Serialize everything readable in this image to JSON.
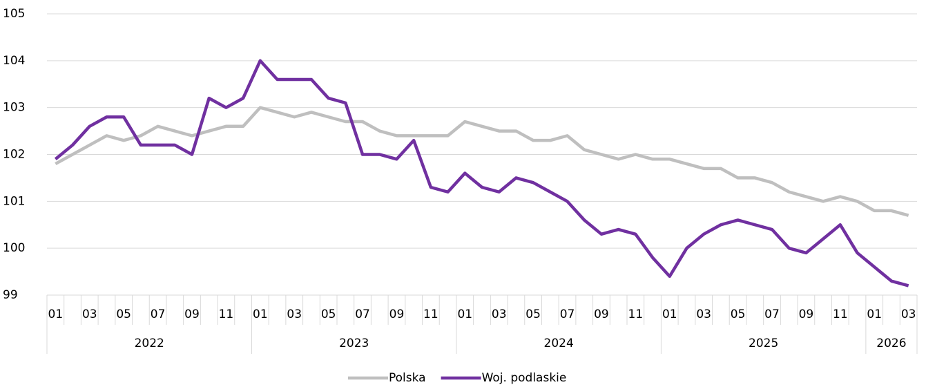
{
  "chart_data": {
    "type": "line",
    "categories": [
      "01",
      null,
      "03",
      null,
      "05",
      null,
      "07",
      null,
      "09",
      null,
      "11",
      null,
      "01",
      null,
      "03",
      null,
      "05",
      null,
      "07",
      null,
      "09",
      null,
      "11",
      null,
      "01",
      null,
      "03",
      null,
      "05",
      null,
      "07",
      null,
      "09",
      null,
      "11",
      null,
      "01",
      null,
      "03",
      null,
      "05",
      null,
      "07",
      null,
      "09",
      null,
      "11",
      null,
      "01",
      null,
      "03"
    ],
    "category_years": [
      "2022",
      "2022",
      "2022",
      "2022",
      "2022",
      "2022",
      "2022",
      "2022",
      "2022",
      "2022",
      "2022",
      "2022",
      "2023",
      "2023",
      "2023",
      "2023",
      "2023",
      "2023",
      "2023",
      "2023",
      "2023",
      "2023",
      "2023",
      "2023",
      "2024",
      "2024",
      "2024",
      "2024",
      "2024",
      "2024",
      "2024",
      "2024",
      "2024",
      "2024",
      "2024",
      "2024",
      "2025",
      "2025",
      "2025",
      "2025",
      "2025",
      "2025",
      "2025",
      "2025",
      "2025",
      "2025",
      "2025",
      "2025",
      "2026",
      "2026",
      "2026"
    ],
    "series": [
      {
        "name": "Polska",
        "color": "#bfbfbf",
        "values": [
          101.8,
          102.0,
          102.2,
          102.4,
          102.3,
          102.4,
          102.6,
          102.5,
          102.4,
          102.5,
          102.6,
          102.6,
          103.0,
          102.9,
          102.8,
          102.9,
          102.8,
          102.7,
          102.7,
          102.5,
          102.4,
          102.4,
          102.4,
          102.4,
          102.7,
          102.6,
          102.5,
          102.5,
          102.3,
          102.3,
          102.4,
          102.1,
          102.0,
          101.9,
          102.0,
          101.9,
          101.9,
          101.8,
          101.7,
          101.7,
          101.5,
          101.5,
          101.4,
          101.2,
          101.1,
          101.0,
          101.1,
          101.0,
          100.8,
          100.8,
          100.7
        ]
      },
      {
        "name": "Woj. podlaskie",
        "color": "#7030a0",
        "values": [
          101.9,
          102.2,
          102.6,
          102.8,
          102.8,
          102.2,
          102.2,
          102.2,
          102.0,
          103.2,
          103.0,
          103.2,
          104.0,
          103.6,
          103.6,
          103.6,
          103.2,
          103.1,
          102.0,
          102.0,
          101.9,
          102.3,
          101.3,
          101.2,
          101.6,
          101.3,
          101.2,
          101.5,
          101.4,
          101.2,
          101.0,
          100.6,
          100.3,
          100.4,
          100.3,
          99.8,
          99.4,
          100.0,
          100.3,
          100.5,
          100.6,
          100.5,
          100.4,
          100.0,
          99.9,
          100.2,
          100.5,
          99.9,
          99.6,
          99.3,
          99.2
        ]
      }
    ],
    "ylim": [
      99,
      105
    ],
    "yticks": [
      99,
      100,
      101,
      102,
      103,
      104,
      105
    ],
    "grid": true,
    "legend": "bottom"
  }
}
